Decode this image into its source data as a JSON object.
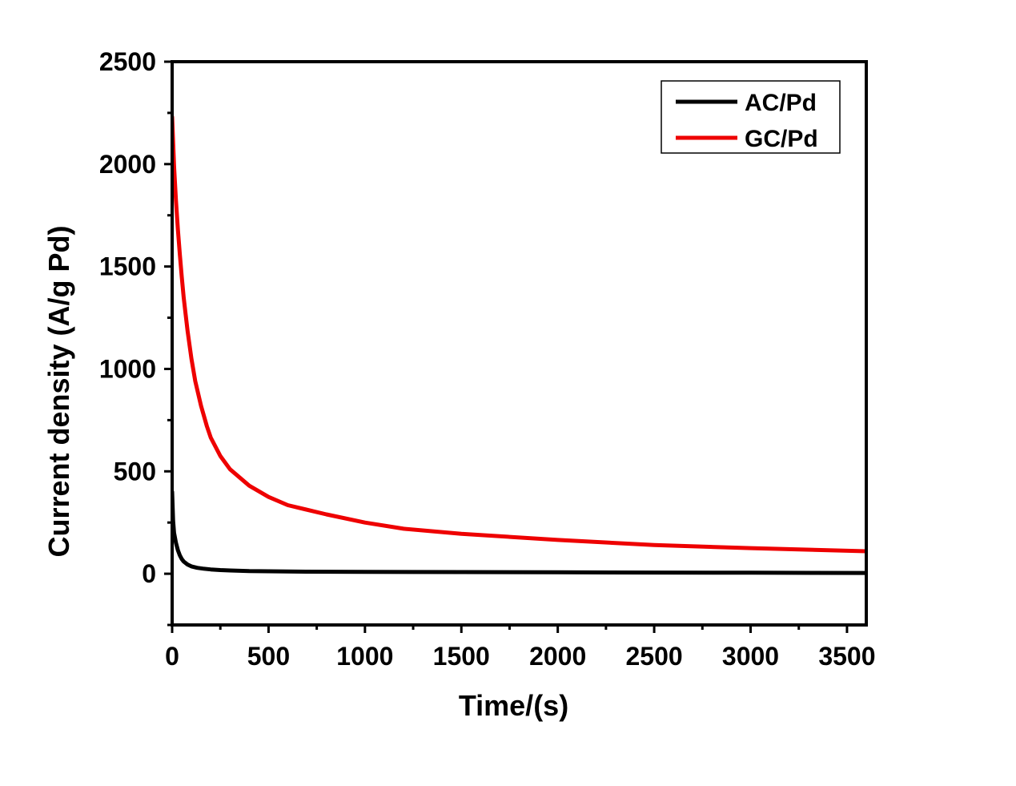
{
  "chart_data": {
    "type": "line",
    "title": "",
    "xlabel": "Time/(s)",
    "ylabel": "Current density (A/g Pd)",
    "xlim": [
      0,
      3600
    ],
    "ylim": [
      -250,
      2500
    ],
    "xticks": [
      0,
      500,
      1000,
      1500,
      2000,
      2500,
      3000,
      3500
    ],
    "xtick_labels": [
      "0",
      "500",
      "1000",
      "1500",
      "2000",
      "2500",
      "3000",
      "3500"
    ],
    "yticks": [
      0,
      500,
      1000,
      1500,
      2000,
      2500
    ],
    "ytick_labels": [
      "0",
      "500",
      "1000",
      "1500",
      "2000",
      "2500"
    ],
    "grid": false,
    "legend_position": "top-right",
    "series": [
      {
        "name": "AC/Pd",
        "color": "#000000",
        "x": [
          0,
          5,
          10,
          20,
          30,
          40,
          50,
          60,
          80,
          100,
          130,
          160,
          200,
          250,
          300,
          400,
          500,
          700,
          1000,
          1500,
          2000,
          2500,
          3000,
          3600
        ],
        "y": [
          400,
          260,
          200,
          150,
          115,
          90,
          72,
          60,
          45,
          36,
          29,
          25,
          21,
          18,
          16,
          13,
          12,
          10,
          9,
          8,
          7,
          6,
          5,
          4
        ]
      },
      {
        "name": "GC/Pd",
        "color": "#ee0000",
        "x": [
          0,
          10,
          20,
          30,
          40,
          50,
          60,
          70,
          80,
          100,
          120,
          150,
          180,
          200,
          250,
          300,
          400,
          500,
          600,
          800,
          1000,
          1200,
          1500,
          2000,
          2500,
          3000,
          3600
        ],
        "y": [
          2230,
          1990,
          1820,
          1680,
          1560,
          1450,
          1350,
          1265,
          1185,
          1050,
          940,
          820,
          720,
          665,
          575,
          510,
          430,
          375,
          335,
          290,
          250,
          220,
          195,
          165,
          140,
          125,
          110
        ]
      }
    ]
  }
}
